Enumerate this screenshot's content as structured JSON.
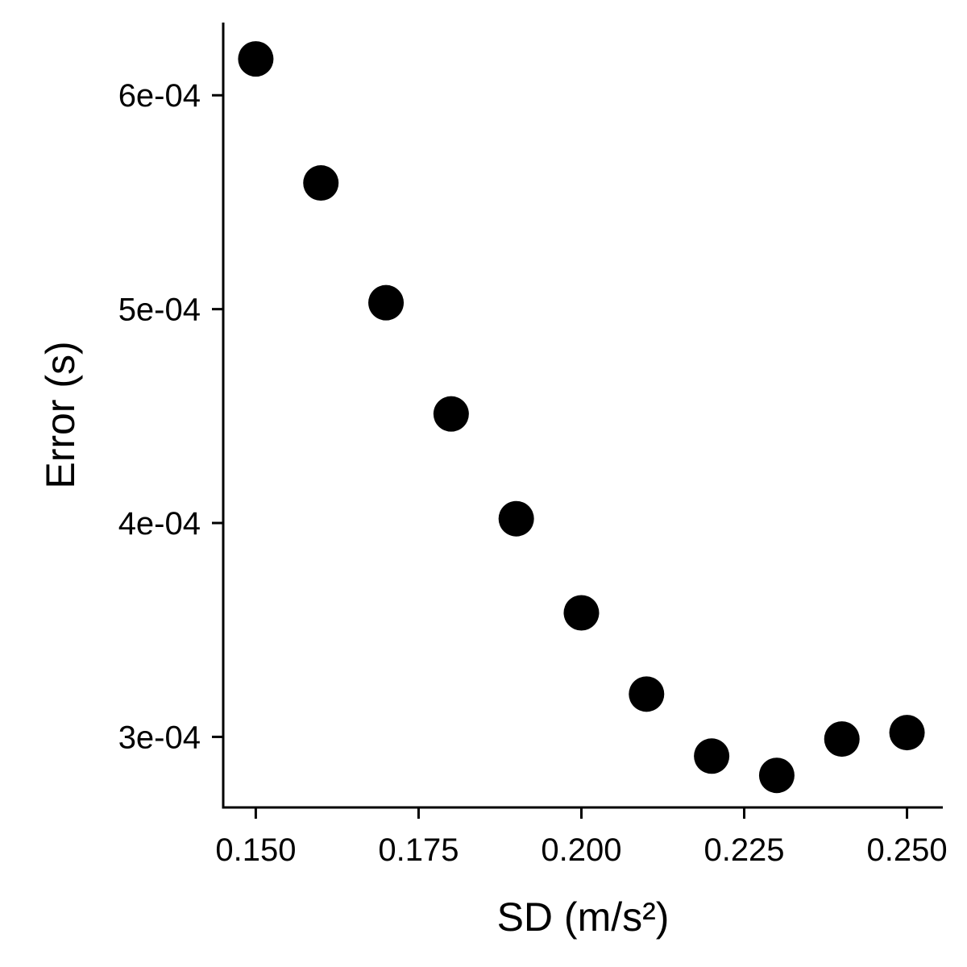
{
  "chart_data": {
    "type": "scatter",
    "title": "",
    "xlabel": "SD (m/s²)",
    "ylabel": "Error (s)",
    "xlim": [
      0.145,
      0.2555
    ],
    "ylim": [
      0.000267,
      0.000634
    ],
    "x_ticks": [
      0.15,
      0.175,
      0.2,
      0.225,
      0.25
    ],
    "x_tick_labels": [
      "0.150",
      "0.175",
      "0.200",
      "0.225",
      "0.250"
    ],
    "y_ticks": [
      0.0003,
      0.0004,
      0.0005,
      0.0006
    ],
    "y_tick_labels": [
      "3e-04",
      "4e-04",
      "5e-04",
      "6e-04"
    ],
    "grid": false,
    "legend": "none",
    "point_color": "#000000",
    "series": [
      {
        "x": [
          0.15,
          0.16,
          0.17,
          0.18,
          0.19,
          0.2,
          0.21,
          0.22,
          0.23,
          0.24,
          0.25
        ],
        "y": [
          0.000617,
          0.000559,
          0.000503,
          0.000451,
          0.000402,
          0.000358,
          0.00032,
          0.000291,
          0.000282,
          0.000299,
          0.000302
        ]
      }
    ]
  }
}
